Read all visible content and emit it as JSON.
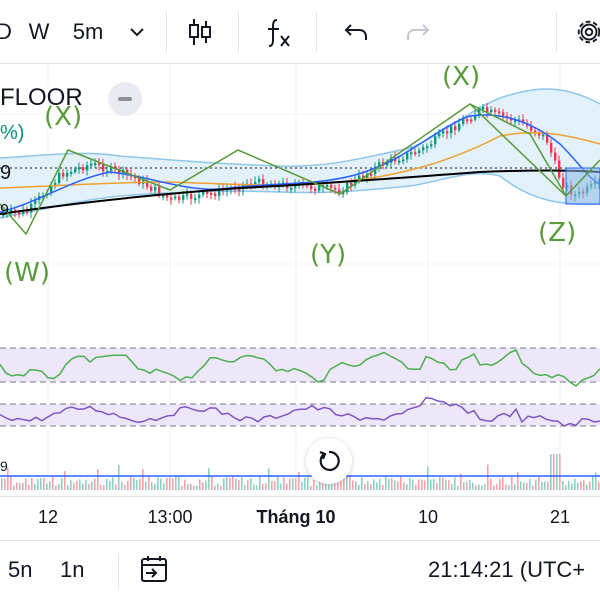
{
  "toolbar": {
    "interval_d": "D",
    "interval_w": "W",
    "interval_current": "5m",
    "dropdown_icon": "chevron-down-icon",
    "chart_type_icon": "candles-icon",
    "indicators_icon": "fx-icon",
    "undo_icon": "undo-icon",
    "redo_icon": "redo-icon",
    "settings_icon": "gear-icon"
  },
  "legend": {
    "symbol": "FLOOR",
    "percent_fragment": "%)",
    "level_fragment": "9",
    "level_fragment2": "9"
  },
  "wave_labels": {
    "x1": "(X)",
    "x2": "(X)",
    "w": "(W)",
    "y": "(Y)",
    "z": "(Z)"
  },
  "volume_fragment": "9",
  "time_axis": {
    "t1": "12",
    "t2": "13:00",
    "t3": "Tháng 10",
    "t4": "10",
    "t5": "21"
  },
  "bottombar": {
    "range_5n": "5n",
    "range_1n": "1n",
    "goto_icon": "calendar-goto-icon",
    "clock": "21:14:21 (UTC+"
  },
  "colors": {
    "wave_green": "#5a9a3b",
    "up": "#089981",
    "down": "#f23645",
    "indicator_fill": "#ede7f9",
    "rsi_line": "#4caf50",
    "stoch_line": "#7e57c2",
    "bb_band": "#8ec7ea",
    "ma_blue": "#2962ff",
    "ma_orange": "#f0a030",
    "ma_black": "#000000"
  }
}
